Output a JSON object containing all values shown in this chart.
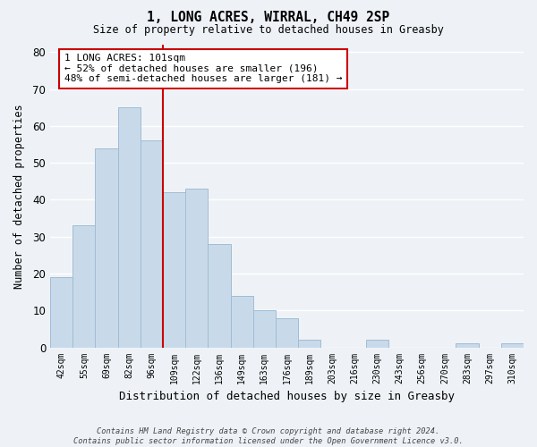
{
  "title": "1, LONG ACRES, WIRRAL, CH49 2SP",
  "subtitle": "Size of property relative to detached houses in Greasby",
  "xlabel": "Distribution of detached houses by size in Greasby",
  "ylabel": "Number of detached properties",
  "bar_color": "#c8daea",
  "bar_edge_color": "#a0bcd4",
  "categories": [
    "42sqm",
    "55sqm",
    "69sqm",
    "82sqm",
    "96sqm",
    "109sqm",
    "122sqm",
    "136sqm",
    "149sqm",
    "163sqm",
    "176sqm",
    "189sqm",
    "203sqm",
    "216sqm",
    "230sqm",
    "243sqm",
    "256sqm",
    "270sqm",
    "283sqm",
    "297sqm",
    "310sqm"
  ],
  "values": [
    19,
    33,
    54,
    65,
    56,
    42,
    43,
    28,
    14,
    10,
    8,
    2,
    0,
    0,
    2,
    0,
    0,
    0,
    1,
    0,
    1
  ],
  "vline_x_idx": 4.5,
  "vline_color": "#cc0000",
  "annotation_line1": "1 LONG ACRES: 101sqm",
  "annotation_line2": "← 52% of detached houses are smaller (196)",
  "annotation_line3": "48% of semi-detached houses are larger (181) →",
  "annotation_box_color": "white",
  "annotation_box_edge_color": "#cc0000",
  "ylim": [
    0,
    82
  ],
  "yticks": [
    0,
    10,
    20,
    30,
    40,
    50,
    60,
    70,
    80
  ],
  "footer_line1": "Contains HM Land Registry data © Crown copyright and database right 2024.",
  "footer_line2": "Contains public sector information licensed under the Open Government Licence v3.0.",
  "bg_color": "#eef2f7",
  "grid_color": "white"
}
